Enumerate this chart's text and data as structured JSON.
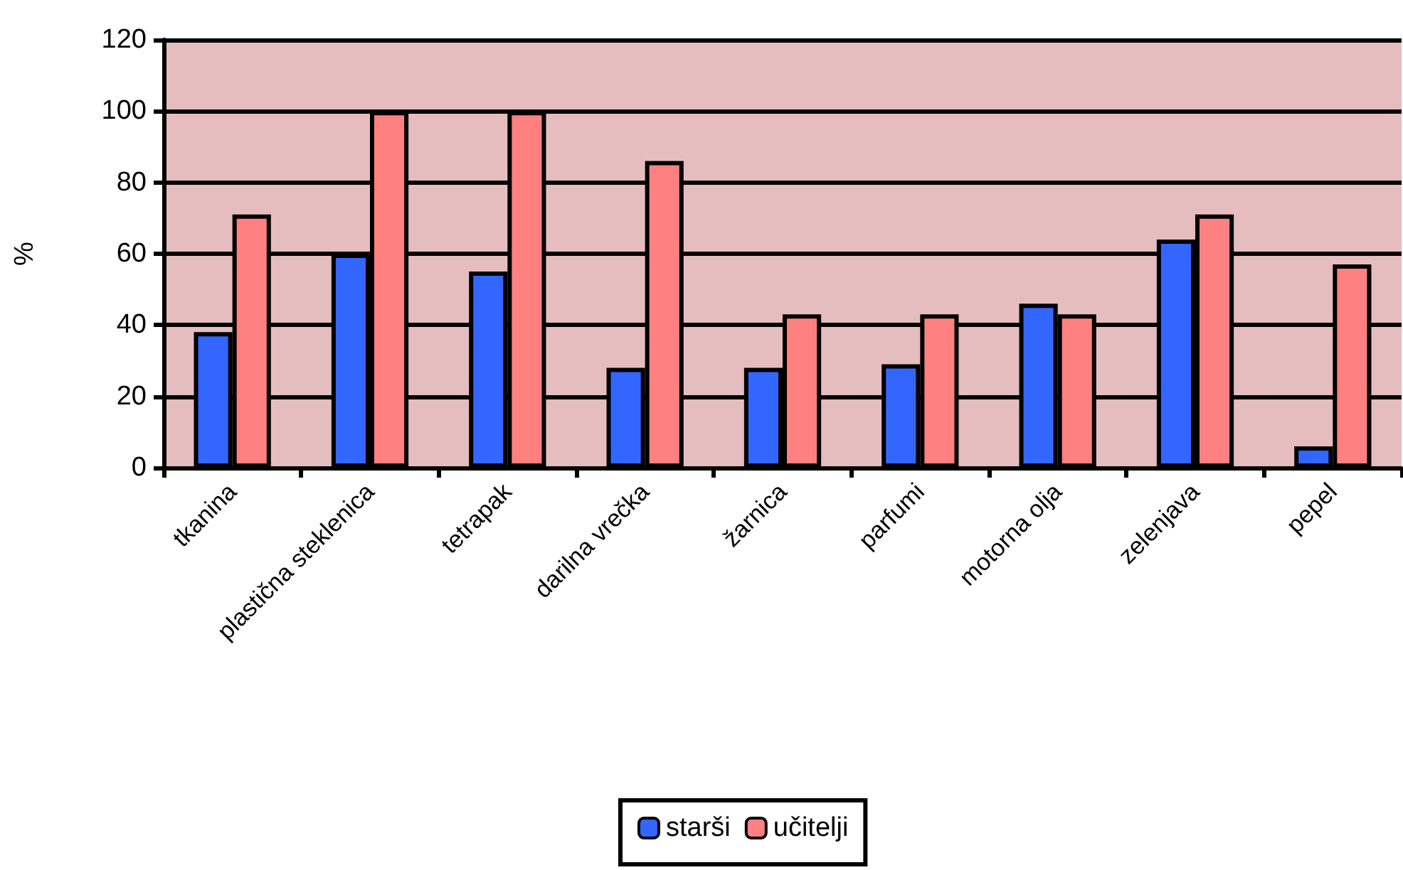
{
  "chart_data": {
    "type": "bar",
    "ylabel": "%",
    "categories": [
      "tkanina",
      "plastična steklenica",
      "tetrapak",
      "darilna vrečka",
      "žarnica",
      "parfumi",
      "motorna olja",
      "zelenjava",
      "pepel"
    ],
    "series": [
      {
        "name": "starši",
        "color": "#3366ff",
        "values": [
          38,
          60,
          55,
          28,
          28,
          29,
          46,
          64,
          6
        ]
      },
      {
        "name": "učitelji",
        "color": "#ff8080",
        "values": [
          71,
          100,
          100,
          86,
          43,
          43,
          43,
          71,
          57
        ]
      }
    ],
    "ylim": [
      0,
      120
    ],
    "yticks": [
      0,
      20,
      40,
      60,
      80,
      100,
      120
    ],
    "grid": "y",
    "legend": "bottom"
  }
}
